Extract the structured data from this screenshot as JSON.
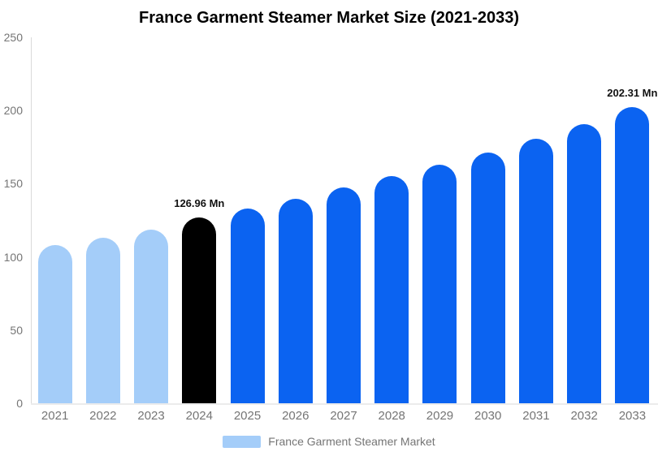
{
  "chart_data": {
    "type": "bar",
    "title": "France Garment Steamer Market Size (2021-2033)",
    "xlabel": "",
    "ylabel": "",
    "ylim": [
      0,
      250
    ],
    "yticks": [
      0,
      50,
      100,
      150,
      200,
      250
    ],
    "grid": false,
    "unit": "Mn",
    "legend": {
      "label": "France Garment Steamer Market",
      "swatch_segment": "past",
      "position": "bottom-center"
    },
    "palette": {
      "past": "#A4CDF9",
      "current": "#000000",
      "forecast": "#0B63F1"
    },
    "axis_line_color": "#d9d9d9",
    "baseline_color": "#ececec",
    "tick_text_color": "#757575",
    "points": [
      {
        "year": "2021",
        "value": 107.9,
        "segment": "past"
      },
      {
        "year": "2022",
        "value": 112.9,
        "segment": "past"
      },
      {
        "year": "2023",
        "value": 118.9,
        "segment": "past"
      },
      {
        "year": "2024",
        "value": 126.96,
        "segment": "current",
        "label": "126.96 Mn"
      },
      {
        "year": "2025",
        "value": 133.1,
        "segment": "forecast"
      },
      {
        "year": "2026",
        "value": 139.7,
        "segment": "forecast"
      },
      {
        "year": "2027",
        "value": 147.3,
        "segment": "forecast"
      },
      {
        "year": "2028",
        "value": 155.1,
        "segment": "forecast"
      },
      {
        "year": "2029",
        "value": 163.0,
        "segment": "forecast"
      },
      {
        "year": "2030",
        "value": 171.2,
        "segment": "forecast"
      },
      {
        "year": "2031",
        "value": 180.6,
        "segment": "forecast"
      },
      {
        "year": "2032",
        "value": 190.7,
        "segment": "forecast"
      },
      {
        "year": "2033",
        "value": 202.31,
        "segment": "forecast",
        "label": "202.31 Mn"
      }
    ]
  }
}
